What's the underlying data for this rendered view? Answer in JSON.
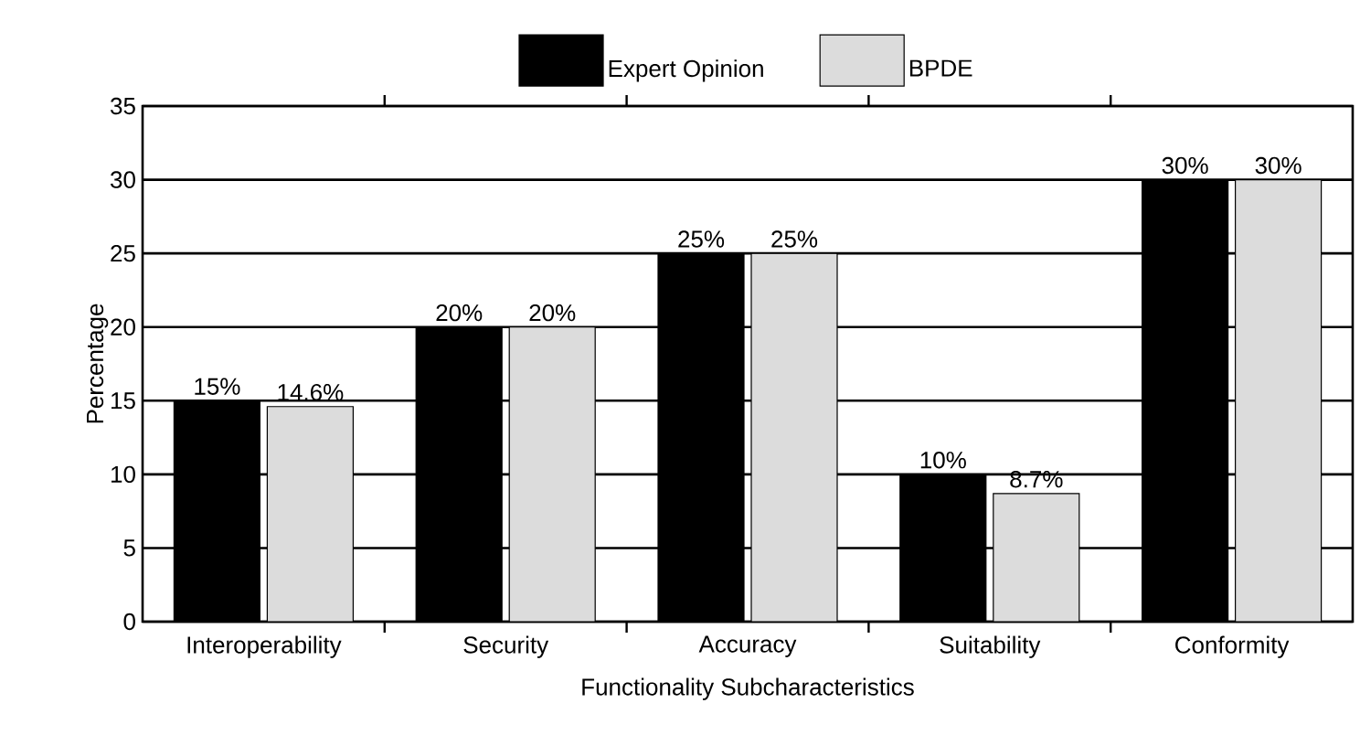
{
  "chart_data": {
    "type": "bar",
    "xlabel": "Functionality Subcharacteristics",
    "ylabel": "Percentage",
    "categories": [
      "Interoperability",
      "Security",
      "Accuracy",
      "Suitability",
      "Conformity"
    ],
    "series": [
      {
        "name": "Expert Opinion",
        "color": "#000000",
        "values": [
          15,
          20,
          25,
          10,
          30
        ],
        "value_labels": [
          "15%",
          "20%",
          "25%",
          "10%",
          "30%"
        ]
      },
      {
        "name": "BPDE",
        "color": "#dcdcdc",
        "values": [
          14.6,
          20,
          25,
          8.7,
          30
        ],
        "value_labels": [
          "14.6%",
          "20%",
          "25%",
          "8.7%",
          "30%"
        ]
      }
    ],
    "ylim": [
      0,
      35
    ],
    "yticks": [
      0,
      5,
      10,
      15,
      20,
      25,
      30,
      35
    ],
    "grid": "y",
    "legend": "top"
  }
}
